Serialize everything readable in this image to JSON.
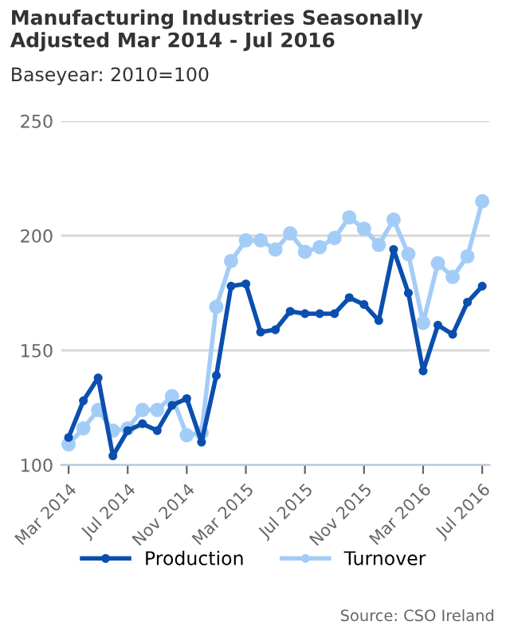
{
  "chart_data": {
    "type": "line",
    "title": "Manufacturing Industries Seasonally Adjusted Mar 2014 - Jul 2016",
    "subtitle": "Baseyear: 2010=100",
    "categories": [
      "Mar 2014",
      null,
      null,
      null,
      "Jul 2014",
      null,
      null,
      null,
      "Nov 2014",
      null,
      null,
      null,
      "Mar 2015",
      null,
      null,
      null,
      "Jul 2015",
      null,
      null,
      null,
      "Nov 2015",
      null,
      null,
      null,
      "Mar 2016",
      null,
      null,
      null,
      "Jul 2016"
    ],
    "series": [
      {
        "name": "Production",
        "color": "#0b4fae",
        "values": [
          112,
          128,
          138,
          104,
          115,
          118,
          115,
          126,
          129,
          110,
          139,
          178,
          179,
          158,
          159,
          167,
          166,
          166,
          166,
          173,
          170,
          163,
          194,
          175,
          141,
          161,
          157,
          171,
          178
        ]
      },
      {
        "name": "Turnover",
        "color": "#a3cdf7",
        "values": [
          109,
          116,
          124,
          115,
          116,
          124,
          124,
          130,
          113,
          114,
          169,
          189,
          198,
          198,
          194,
          201,
          193,
          195,
          199,
          208,
          203,
          196,
          207,
          192,
          162,
          188,
          182,
          191,
          215
        ]
      }
    ],
    "ylim": [
      100,
      250
    ],
    "yticks": [
      100,
      150,
      200,
      250
    ],
    "grid": "y",
    "legend": "bottom",
    "marker": "circle",
    "line_style": "solid",
    "annotations": [
      "Source: CSO Ireland"
    ]
  }
}
